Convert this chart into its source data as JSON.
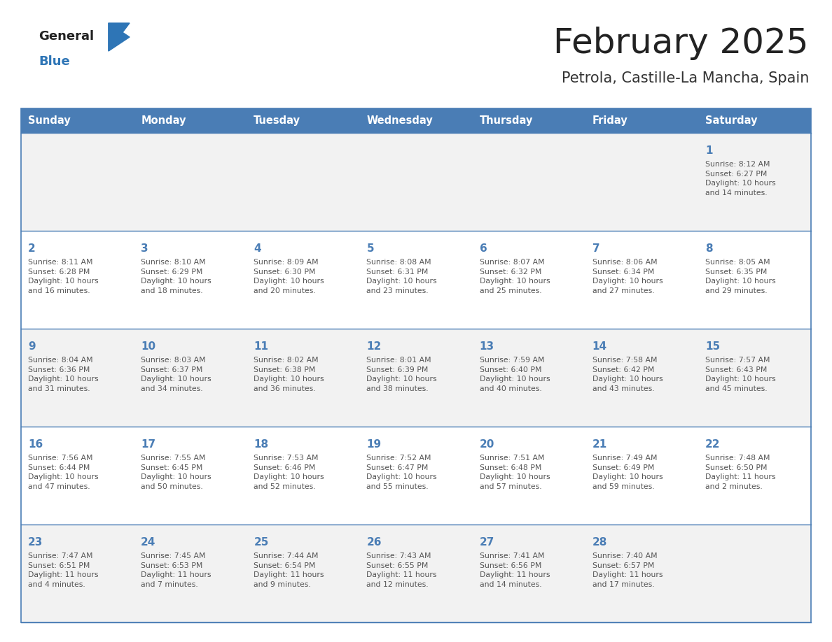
{
  "title": "February 2025",
  "subtitle": "Petrola, Castille-La Mancha, Spain",
  "days_of_week": [
    "Sunday",
    "Monday",
    "Tuesday",
    "Wednesday",
    "Thursday",
    "Friday",
    "Saturday"
  ],
  "header_bg": "#4A7DB5",
  "header_text": "#FFFFFF",
  "cell_bg_even": "#F2F2F2",
  "cell_bg_odd": "#FFFFFF",
  "cell_text": "#555555",
  "day_num_color": "#4A7DB5",
  "grid_color": "#4A7DB5",
  "title_color": "#222222",
  "subtitle_color": "#333333",
  "logo_general_color": "#222222",
  "logo_blue_color": "#2E75B6",
  "weeks": [
    [
      {
        "day": null,
        "info": null
      },
      {
        "day": null,
        "info": null
      },
      {
        "day": null,
        "info": null
      },
      {
        "day": null,
        "info": null
      },
      {
        "day": null,
        "info": null
      },
      {
        "day": null,
        "info": null
      },
      {
        "day": 1,
        "info": "Sunrise: 8:12 AM\nSunset: 6:27 PM\nDaylight: 10 hours\nand 14 minutes."
      }
    ],
    [
      {
        "day": 2,
        "info": "Sunrise: 8:11 AM\nSunset: 6:28 PM\nDaylight: 10 hours\nand 16 minutes."
      },
      {
        "day": 3,
        "info": "Sunrise: 8:10 AM\nSunset: 6:29 PM\nDaylight: 10 hours\nand 18 minutes."
      },
      {
        "day": 4,
        "info": "Sunrise: 8:09 AM\nSunset: 6:30 PM\nDaylight: 10 hours\nand 20 minutes."
      },
      {
        "day": 5,
        "info": "Sunrise: 8:08 AM\nSunset: 6:31 PM\nDaylight: 10 hours\nand 23 minutes."
      },
      {
        "day": 6,
        "info": "Sunrise: 8:07 AM\nSunset: 6:32 PM\nDaylight: 10 hours\nand 25 minutes."
      },
      {
        "day": 7,
        "info": "Sunrise: 8:06 AM\nSunset: 6:34 PM\nDaylight: 10 hours\nand 27 minutes."
      },
      {
        "day": 8,
        "info": "Sunrise: 8:05 AM\nSunset: 6:35 PM\nDaylight: 10 hours\nand 29 minutes."
      }
    ],
    [
      {
        "day": 9,
        "info": "Sunrise: 8:04 AM\nSunset: 6:36 PM\nDaylight: 10 hours\nand 31 minutes."
      },
      {
        "day": 10,
        "info": "Sunrise: 8:03 AM\nSunset: 6:37 PM\nDaylight: 10 hours\nand 34 minutes."
      },
      {
        "day": 11,
        "info": "Sunrise: 8:02 AM\nSunset: 6:38 PM\nDaylight: 10 hours\nand 36 minutes."
      },
      {
        "day": 12,
        "info": "Sunrise: 8:01 AM\nSunset: 6:39 PM\nDaylight: 10 hours\nand 38 minutes."
      },
      {
        "day": 13,
        "info": "Sunrise: 7:59 AM\nSunset: 6:40 PM\nDaylight: 10 hours\nand 40 minutes."
      },
      {
        "day": 14,
        "info": "Sunrise: 7:58 AM\nSunset: 6:42 PM\nDaylight: 10 hours\nand 43 minutes."
      },
      {
        "day": 15,
        "info": "Sunrise: 7:57 AM\nSunset: 6:43 PM\nDaylight: 10 hours\nand 45 minutes."
      }
    ],
    [
      {
        "day": 16,
        "info": "Sunrise: 7:56 AM\nSunset: 6:44 PM\nDaylight: 10 hours\nand 47 minutes."
      },
      {
        "day": 17,
        "info": "Sunrise: 7:55 AM\nSunset: 6:45 PM\nDaylight: 10 hours\nand 50 minutes."
      },
      {
        "day": 18,
        "info": "Sunrise: 7:53 AM\nSunset: 6:46 PM\nDaylight: 10 hours\nand 52 minutes."
      },
      {
        "day": 19,
        "info": "Sunrise: 7:52 AM\nSunset: 6:47 PM\nDaylight: 10 hours\nand 55 minutes."
      },
      {
        "day": 20,
        "info": "Sunrise: 7:51 AM\nSunset: 6:48 PM\nDaylight: 10 hours\nand 57 minutes."
      },
      {
        "day": 21,
        "info": "Sunrise: 7:49 AM\nSunset: 6:49 PM\nDaylight: 10 hours\nand 59 minutes."
      },
      {
        "day": 22,
        "info": "Sunrise: 7:48 AM\nSunset: 6:50 PM\nDaylight: 11 hours\nand 2 minutes."
      }
    ],
    [
      {
        "day": 23,
        "info": "Sunrise: 7:47 AM\nSunset: 6:51 PM\nDaylight: 11 hours\nand 4 minutes."
      },
      {
        "day": 24,
        "info": "Sunrise: 7:45 AM\nSunset: 6:53 PM\nDaylight: 11 hours\nand 7 minutes."
      },
      {
        "day": 25,
        "info": "Sunrise: 7:44 AM\nSunset: 6:54 PM\nDaylight: 11 hours\nand 9 minutes."
      },
      {
        "day": 26,
        "info": "Sunrise: 7:43 AM\nSunset: 6:55 PM\nDaylight: 11 hours\nand 12 minutes."
      },
      {
        "day": 27,
        "info": "Sunrise: 7:41 AM\nSunset: 6:56 PM\nDaylight: 11 hours\nand 14 minutes."
      },
      {
        "day": 28,
        "info": "Sunrise: 7:40 AM\nSunset: 6:57 PM\nDaylight: 11 hours\nand 17 minutes."
      },
      {
        "day": null,
        "info": null
      }
    ]
  ]
}
